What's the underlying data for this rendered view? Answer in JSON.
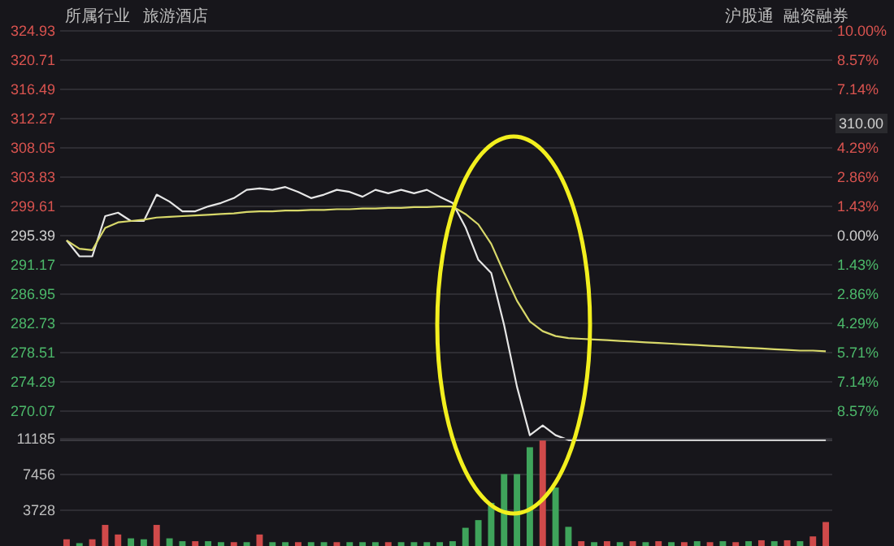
{
  "chart_data": [
    {
      "type": "line",
      "annotations": [
        "所属行业",
        "旅游酒店",
        "沪股通",
        "融资融券",
        "310.00"
      ],
      "categories": [
        null,
        null,
        null,
        null,
        null,
        null,
        null,
        null,
        null,
        null,
        null,
        null,
        null,
        null,
        null,
        null,
        null,
        null,
        null,
        null,
        null,
        null,
        null,
        null,
        null,
        null,
        null,
        null,
        null,
        null,
        null,
        null,
        null,
        null,
        null,
        null,
        null,
        null,
        null,
        null,
        null,
        null,
        null,
        null,
        null,
        null,
        null,
        null,
        null,
        null,
        null,
        null,
        null,
        null,
        null,
        null,
        null,
        null,
        null,
        null
      ],
      "series": [
        {
          "color": "#e6e6e6",
          "values": [
            294.7,
            292.4,
            292.4,
            298.2,
            298.7,
            297.5,
            297.5,
            301.3,
            300.3,
            298.9,
            298.9,
            299.6,
            300.1,
            300.8,
            302.0,
            302.2,
            302.0,
            302.4,
            301.7,
            300.8,
            301.3,
            302.0,
            301.7,
            301.0,
            302.0,
            301.5,
            302.0,
            301.5,
            302.0,
            301.0,
            300.1,
            296.6,
            291.9,
            290.0,
            282.5,
            273.6,
            266.6,
            268.0,
            266.6,
            265.9,
            265.9,
            265.9,
            265.9,
            265.9,
            265.9,
            265.9,
            265.9,
            265.9,
            265.9,
            265.9,
            265.9,
            265.9,
            265.9,
            265.9,
            265.9,
            265.9,
            265.9,
            265.9,
            265.9,
            265.9
          ]
        },
        {
          "color": "#d8d86a",
          "values": [
            294.7,
            293.5,
            293.3,
            296.5,
            297.3,
            297.5,
            297.7,
            298.0,
            298.1,
            298.2,
            298.3,
            298.4,
            298.5,
            298.6,
            298.8,
            298.9,
            298.9,
            299.0,
            299.0,
            299.1,
            299.1,
            299.2,
            299.2,
            299.3,
            299.3,
            299.4,
            299.4,
            299.5,
            299.5,
            299.6,
            299.6,
            298.5,
            297.0,
            294.2,
            290.0,
            286.0,
            283.0,
            281.6,
            280.9,
            280.6,
            280.5,
            280.4,
            280.3,
            280.2,
            280.1,
            280.0,
            279.9,
            279.8,
            279.7,
            279.6,
            279.5,
            279.4,
            279.3,
            279.2,
            279.1,
            279.0,
            278.9,
            278.8,
            278.8,
            278.7
          ]
        }
      ],
      "ylim": [
        265.85,
        324.93
      ],
      "yticks": [
        270.07,
        274.29,
        278.51,
        282.73,
        286.95,
        291.17,
        295.39,
        299.61,
        303.83,
        308.05,
        312.27,
        316.49,
        320.71,
        324.93
      ],
      "y2lim": [
        -10,
        10
      ],
      "y2ticks": [
        {
          "value": -8.57,
          "label": "8.57%"
        },
        {
          "value": -7.14,
          "label": "7.14%"
        },
        {
          "value": -5.71,
          "label": "5.71%"
        },
        {
          "value": -4.29,
          "label": "4.29%"
        },
        {
          "value": -2.86,
          "label": "2.86%"
        },
        {
          "value": -1.43,
          "label": "1.43%"
        },
        {
          "value": 0,
          "label": "0.00%"
        },
        {
          "value": 1.43,
          "label": "1.43%"
        },
        {
          "value": 2.86,
          "label": "2.86%"
        },
        {
          "value": 4.29,
          "label": "4.29%"
        },
        {
          "value": 7.14,
          "label": "7.14%"
        },
        {
          "value": 8.57,
          "label": "8.57%"
        },
        {
          "value": 10,
          "label": "10.00%"
        }
      ],
      "grid": "y"
    },
    {
      "type": "bar",
      "categories": [
        null,
        null,
        null,
        null,
        null,
        null,
        null,
        null,
        null,
        null,
        null,
        null,
        null,
        null,
        null,
        null,
        null,
        null,
        null,
        null,
        null,
        null,
        null,
        null,
        null,
        null,
        null,
        null,
        null,
        null,
        null,
        null,
        null,
        null,
        null,
        null,
        null,
        null,
        null,
        null,
        null,
        null,
        null,
        null,
        null,
        null,
        null,
        null,
        null,
        null,
        null,
        null,
        null,
        null,
        null,
        null,
        null,
        null,
        null,
        null
      ],
      "values": [
        700,
        300,
        700,
        2200,
        1200,
        800,
        700,
        2200,
        800,
        500,
        500,
        500,
        400,
        400,
        400,
        1200,
        400,
        400,
        400,
        400,
        400,
        400,
        400,
        400,
        400,
        400,
        400,
        400,
        400,
        400,
        500,
        1900,
        2700,
        4500,
        7500,
        7500,
        10300,
        11000,
        6100,
        2000,
        500,
        400,
        500,
        400,
        500,
        400,
        500,
        400,
        400,
        500,
        400,
        500,
        400,
        500,
        600,
        500,
        600,
        500,
        1000,
        2500
      ],
      "colors": [
        "#d04a4a",
        "#3fa45b",
        "#d04a4a",
        "#d04a4a",
        "#d04a4a",
        "#3fa45b",
        "#3fa45b",
        "#d04a4a",
        "#3fa45b",
        "#3fa45b",
        "#d04a4a",
        "#3fa45b",
        "#3fa45b",
        "#d04a4a",
        "#3fa45b",
        "#d04a4a",
        "#3fa45b",
        "#3fa45b",
        "#d04a4a",
        "#3fa45b",
        "#3fa45b",
        "#d04a4a",
        "#3fa45b",
        "#3fa45b",
        "#3fa45b",
        "#d04a4a",
        "#3fa45b",
        "#3fa45b",
        "#3fa45b",
        "#3fa45b",
        "#3fa45b",
        "#3fa45b",
        "#3fa45b",
        "#3fa45b",
        "#3fa45b",
        "#3fa45b",
        "#3fa45b",
        "#d04a4a",
        "#3fa45b",
        "#3fa45b",
        "#d04a4a",
        "#3fa45b",
        "#d04a4a",
        "#3fa45b",
        "#d04a4a",
        "#3fa45b",
        "#d04a4a",
        "#3fa45b",
        "#d04a4a",
        "#3fa45b",
        "#d04a4a",
        "#3fa45b",
        "#d04a4a",
        "#3fa45b",
        "#d04a4a",
        "#3fa45b",
        "#d04a4a",
        "#3fa45b",
        "#d04a4a",
        "#d04a4a"
      ],
      "ylim": [
        0,
        11185
      ],
      "yticks": [
        3728,
        7456,
        11185
      ],
      "grid": "y"
    }
  ]
}
